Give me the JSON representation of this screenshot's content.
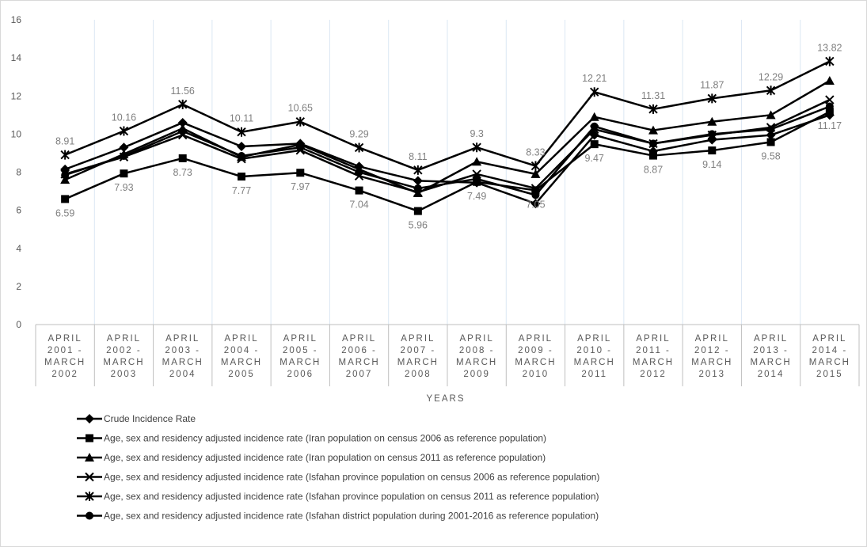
{
  "chart_data": {
    "type": "line",
    "xlabel": "YEARS",
    "ylabel": "",
    "ylim": [
      0,
      16
    ],
    "yticks": [
      0,
      2,
      4,
      6,
      8,
      10,
      12,
      14,
      16
    ],
    "grid": "vertical category bands",
    "legend_position": "bottom-left",
    "categories": [
      [
        "APRIL",
        "2001 -",
        "MARCH",
        "2002"
      ],
      [
        "APRIL",
        "2002 -",
        "MARCH",
        "2003"
      ],
      [
        "APRIL",
        "2003 -",
        "MARCH",
        "2004"
      ],
      [
        "APRIL",
        "2004 -",
        "MARCH",
        "2005"
      ],
      [
        "APRIL",
        "2005 -",
        "MARCH",
        "2006"
      ],
      [
        "APRIL",
        "2006 -",
        "MARCH",
        "2007"
      ],
      [
        "APRIL",
        "2007 -",
        "MARCH",
        "2008"
      ],
      [
        "APRIL",
        "2008 -",
        "MARCH",
        "2009"
      ],
      [
        "APRIL",
        "2009 -",
        "MARCH",
        "2010"
      ],
      [
        "APRIL",
        "2010 -",
        "MARCH",
        "2011"
      ],
      [
        "APRIL",
        "2011 -",
        "MARCH",
        "2012"
      ],
      [
        "APRIL",
        "2012 -",
        "MARCH",
        "2013"
      ],
      [
        "APRIL",
        "2013 -",
        "MARCH",
        "2014"
      ],
      [
        "APRIL",
        "2014 -",
        "MARCH",
        "2015"
      ]
    ],
    "series": [
      {
        "name": "Crude Incidence Rate",
        "marker": "diamond",
        "values": [
          8.15,
          9.3,
          10.6,
          9.35,
          9.5,
          8.3,
          7.55,
          7.45,
          6.35,
          9.95,
          9.1,
          9.7,
          9.95,
          11.0
        ],
        "labels": []
      },
      {
        "name": "Age, sex and residency adjusted incidence rate (Iran population on census 2006 as reference population)",
        "marker": "square",
        "values": [
          6.59,
          7.93,
          8.73,
          7.77,
          7.97,
          7.04,
          5.96,
          7.49,
          7.05,
          9.47,
          8.87,
          9.14,
          9.58,
          11.17
        ],
        "labels": [
          "6.59",
          "7.93",
          "8.73",
          "7.77",
          "7.97",
          "7.04",
          "5.96",
          "7.49",
          "7.05",
          "9.47",
          "8.87",
          "9.14",
          "9.58",
          "11.17"
        ]
      },
      {
        "name": "Age, sex and residency adjusted incidence rate (Iran population on census 2011 as reference population)",
        "marker": "triangle",
        "values": [
          7.6,
          8.95,
          10.3,
          8.8,
          9.45,
          8.15,
          6.9,
          8.55,
          7.9,
          10.9,
          10.2,
          10.65,
          11.0,
          12.8
        ],
        "labels": []
      },
      {
        "name": "Age, sex and residency adjusted incidence rate (Isfahan province population on census 2006 as reference population)",
        "marker": "x",
        "values": [
          7.9,
          8.8,
          9.95,
          8.7,
          9.15,
          7.8,
          6.95,
          7.9,
          7.15,
          10.25,
          9.5,
          9.95,
          10.35,
          11.8
        ],
        "labels": []
      },
      {
        "name": "Age, sex and residency adjusted incidence rate (Isfahan province population on census 2011 as reference population)",
        "marker": "star",
        "values": [
          8.91,
          10.16,
          11.56,
          10.11,
          10.65,
          9.29,
          8.11,
          9.3,
          8.33,
          12.21,
          11.31,
          11.87,
          12.29,
          13.82
        ],
        "labels": [
          "8.91",
          "10.16",
          "11.56",
          "10.11",
          "10.65",
          "9.29",
          "8.11",
          "9.3",
          "8.33",
          "12.21",
          "11.31",
          "11.87",
          "12.29",
          "13.82"
        ]
      },
      {
        "name": "Age, sex and residency adjusted incidence rate (Isfahan district population during 2001-2016 as reference population)",
        "marker": "circle",
        "values": [
          7.85,
          8.85,
          10.15,
          8.85,
          9.3,
          8.0,
          7.15,
          7.65,
          6.8,
          10.4,
          9.5,
          10.0,
          10.25,
          11.45
        ],
        "labels": []
      }
    ],
    "colors": {
      "line": "#000000",
      "grid_band": "#dbe7f3",
      "axis": "#bfbfbf",
      "tick_text": "#595959",
      "data_label": "#808080"
    }
  }
}
